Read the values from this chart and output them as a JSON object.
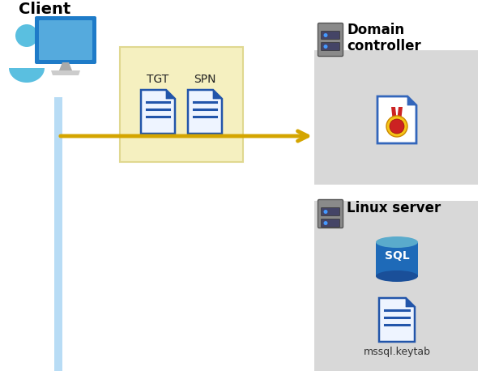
{
  "bg_color": "#ffffff",
  "client_label": "Client",
  "domain_label": "Domain\ncontroller",
  "linux_label": "Linux server",
  "tgt_label": "TGT",
  "spn_label": "SPN",
  "keytab_label": "mssql.keytab",
  "tgt_box_color": "#f5f0c0",
  "tgt_box_edge": "#e0d890",
  "server_box_color": "#d8d8d8",
  "arrow_color": "#d4a500",
  "line_color": "#b8dcf5",
  "doc_blue": "#2255aa",
  "doc_bg": "#eef4ff",
  "sql_dark": "#1a4f99",
  "sql_mid": "#1e6ab8",
  "sql_top_color": "#5aabcc",
  "cert_gold": "#f5c518",
  "cert_red": "#cc2222",
  "server_body": "#8a8a8a",
  "server_dark": "#5a5a5a",
  "server_slot": "#444466",
  "server_led": "#4499ff"
}
